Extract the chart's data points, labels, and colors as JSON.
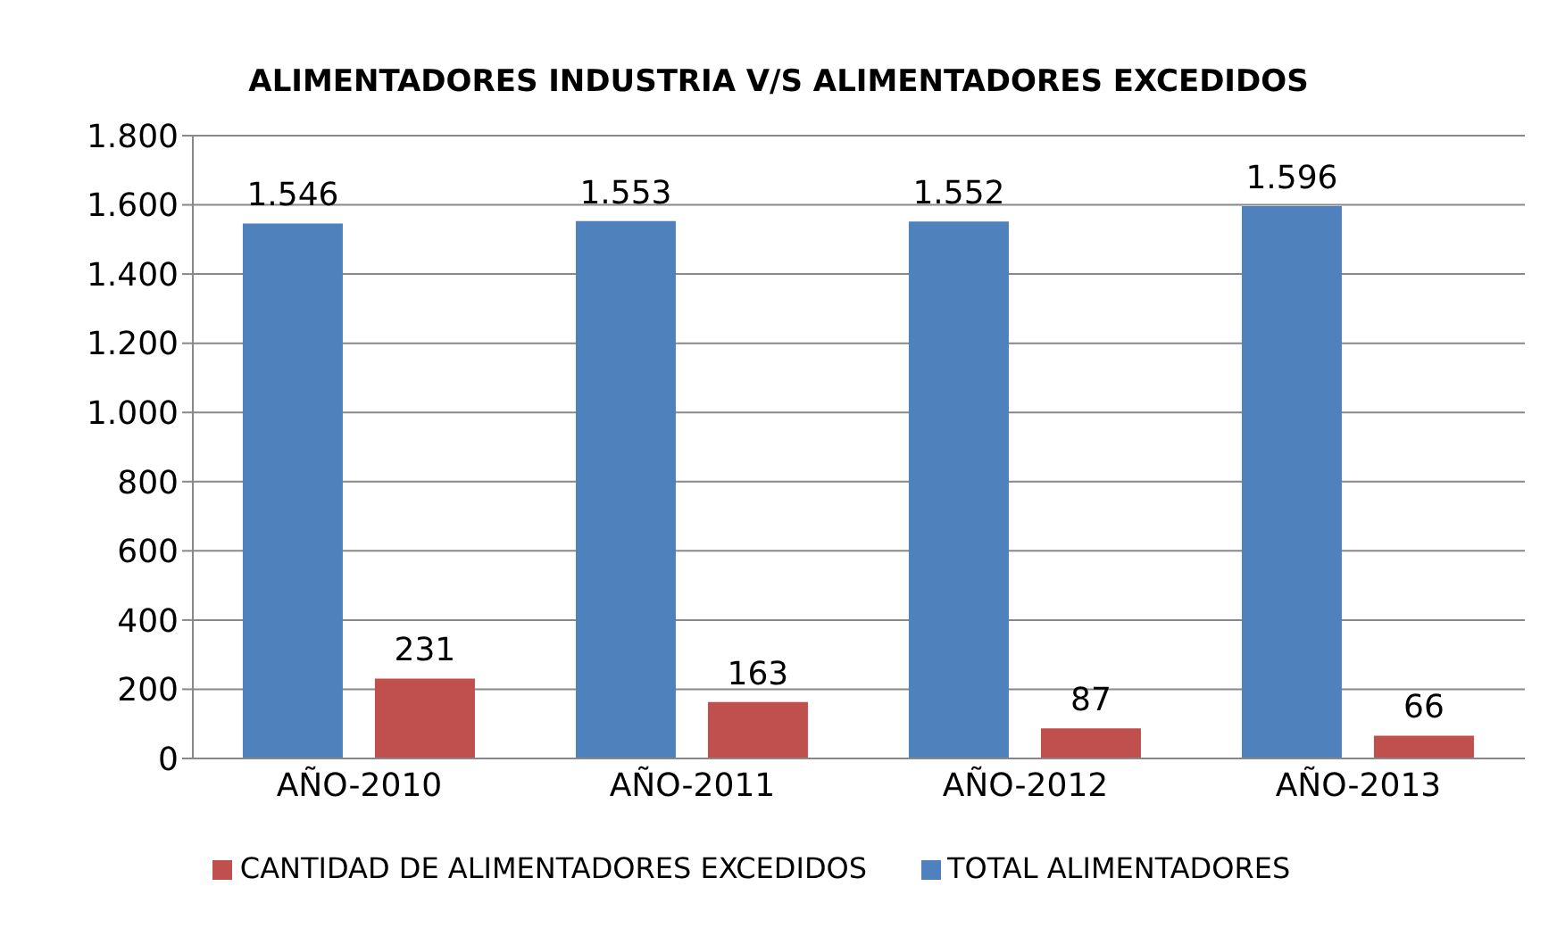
{
  "chart_data": {
    "type": "bar",
    "title": "ALIMENTADORES INDUSTRIA V/S ALIMENTADORES EXCEDIDOS",
    "categories": [
      "AÑO-2010",
      "AÑO-2011",
      "AÑO-2012",
      "AÑO-2013"
    ],
    "series": [
      {
        "name": "TOTAL ALIMENTADORES",
        "color": "#4f81bd",
        "values": [
          1546,
          1553,
          1552,
          1596
        ],
        "value_labels": [
          "1.546",
          "1.553",
          "1.552",
          "1.596"
        ]
      },
      {
        "name": "CANTIDAD DE ALIMENTADORES EXCEDIDOS",
        "color": "#c0504d",
        "values": [
          231,
          163,
          87,
          66
        ],
        "value_labels": [
          "231",
          "163",
          "87",
          "66"
        ]
      }
    ],
    "ylim": [
      0,
      1800
    ],
    "yticks": [
      0,
      200,
      400,
      600,
      800,
      {
        "value": 1000,
        "label": "1.000"
      },
      {
        "value": 1200,
        "label": "1.200"
      },
      {
        "value": 1400,
        "label": "1.400"
      },
      {
        "value": 1600,
        "label": "1.600"
      },
      {
        "value": 1800,
        "label": "1.800"
      }
    ],
    "grid": "y",
    "legend": "bottom"
  }
}
